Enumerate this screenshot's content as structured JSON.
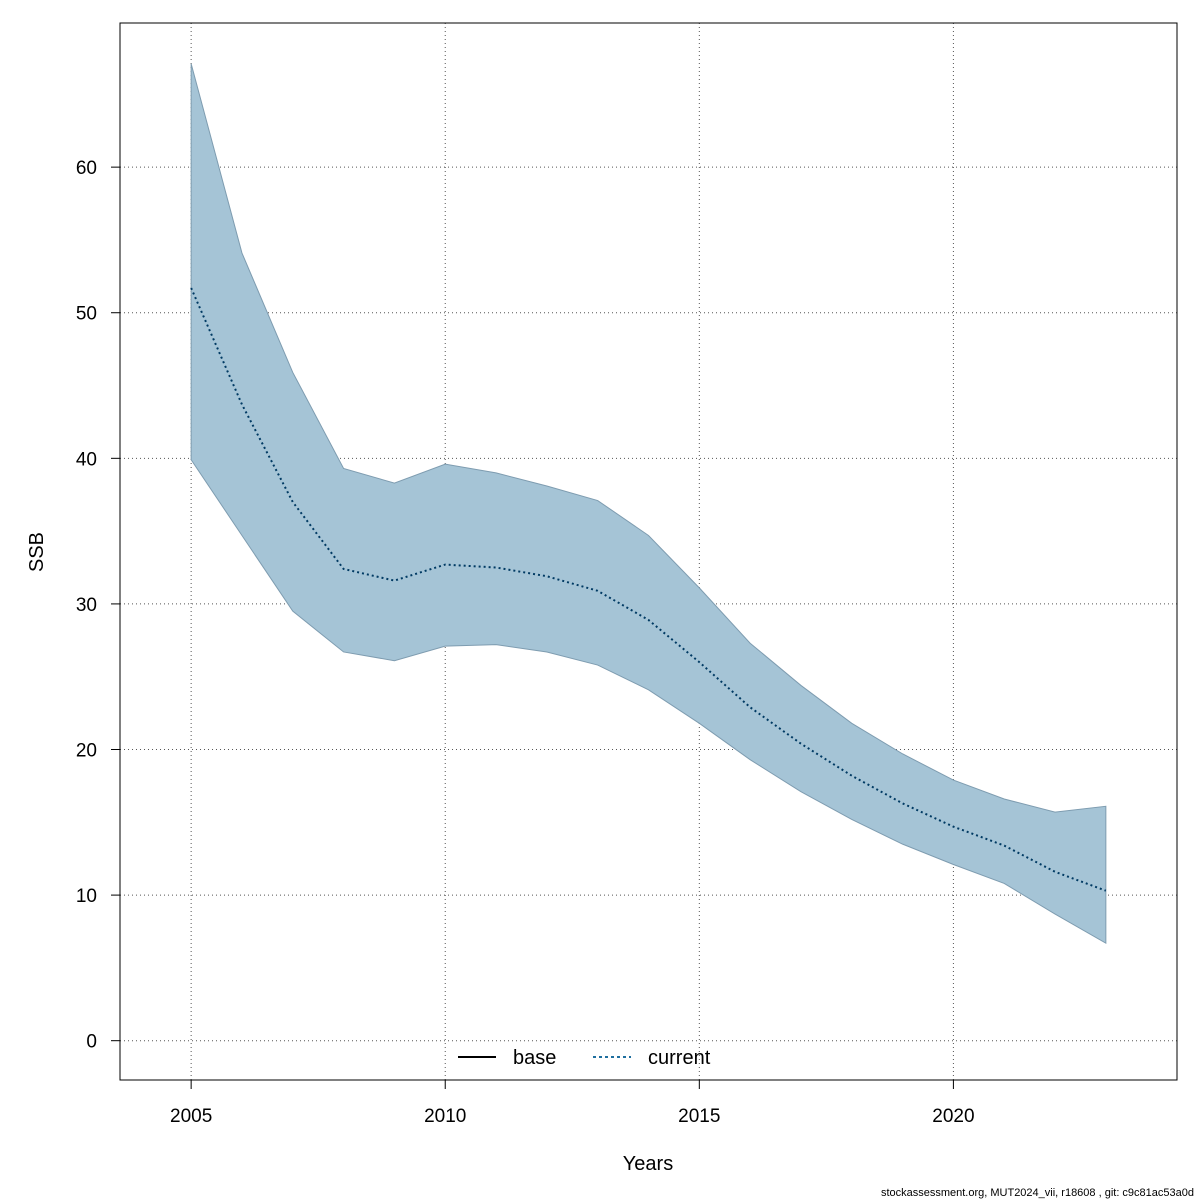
{
  "chart_data": {
    "type": "area",
    "xlabel": "Years",
    "ylabel": "SSB",
    "xlim": [
      2003.6,
      2024.4
    ],
    "ylim": [
      -2.7,
      69.9
    ],
    "x_ticks": [
      2005,
      2010,
      2015,
      2020
    ],
    "y_ticks": [
      0,
      10,
      20,
      30,
      40,
      50,
      60
    ],
    "grid": true,
    "x": [
      2005,
      2006,
      2007,
      2008,
      2009,
      2010,
      2011,
      2012,
      2013,
      2014,
      2015,
      2016,
      2017,
      2018,
      2019,
      2020,
      2021,
      2022,
      2023
    ],
    "series": [
      {
        "name": "current",
        "line_style": "dotted",
        "color": "#003a63",
        "values": [
          51.7,
          43.7,
          37.0,
          32.4,
          31.6,
          32.7,
          32.5,
          31.9,
          30.9,
          28.9,
          26.0,
          22.9,
          20.4,
          18.2,
          16.3,
          14.7,
          13.4,
          11.6,
          10.3
        ]
      }
    ],
    "band": {
      "color": "#a5c4d6",
      "edge_color": "#7e9cb0",
      "lower": [
        39.9,
        34.7,
        29.5,
        26.7,
        26.1,
        27.1,
        27.2,
        26.7,
        25.8,
        24.1,
        21.8,
        19.3,
        17.1,
        15.2,
        13.5,
        12.1,
        10.8,
        8.7,
        6.7
      ],
      "upper": [
        67.1,
        54.1,
        45.9,
        39.3,
        38.3,
        39.6,
        39.0,
        38.1,
        37.1,
        34.7,
        31.1,
        27.3,
        24.4,
        21.8,
        19.7,
        17.9,
        16.6,
        15.7,
        16.1
      ]
    },
    "legend": {
      "placement": "bottom-center",
      "entries": [
        {
          "label": "base",
          "line_style": "solid",
          "color": "#000000"
        },
        {
          "label": "current",
          "line_style": "dotted",
          "color": "#1f6f9f"
        }
      ]
    }
  },
  "footer": "stockassessment.org, MUT2024_vii, r18608 , git: c9c81ac53a0d"
}
